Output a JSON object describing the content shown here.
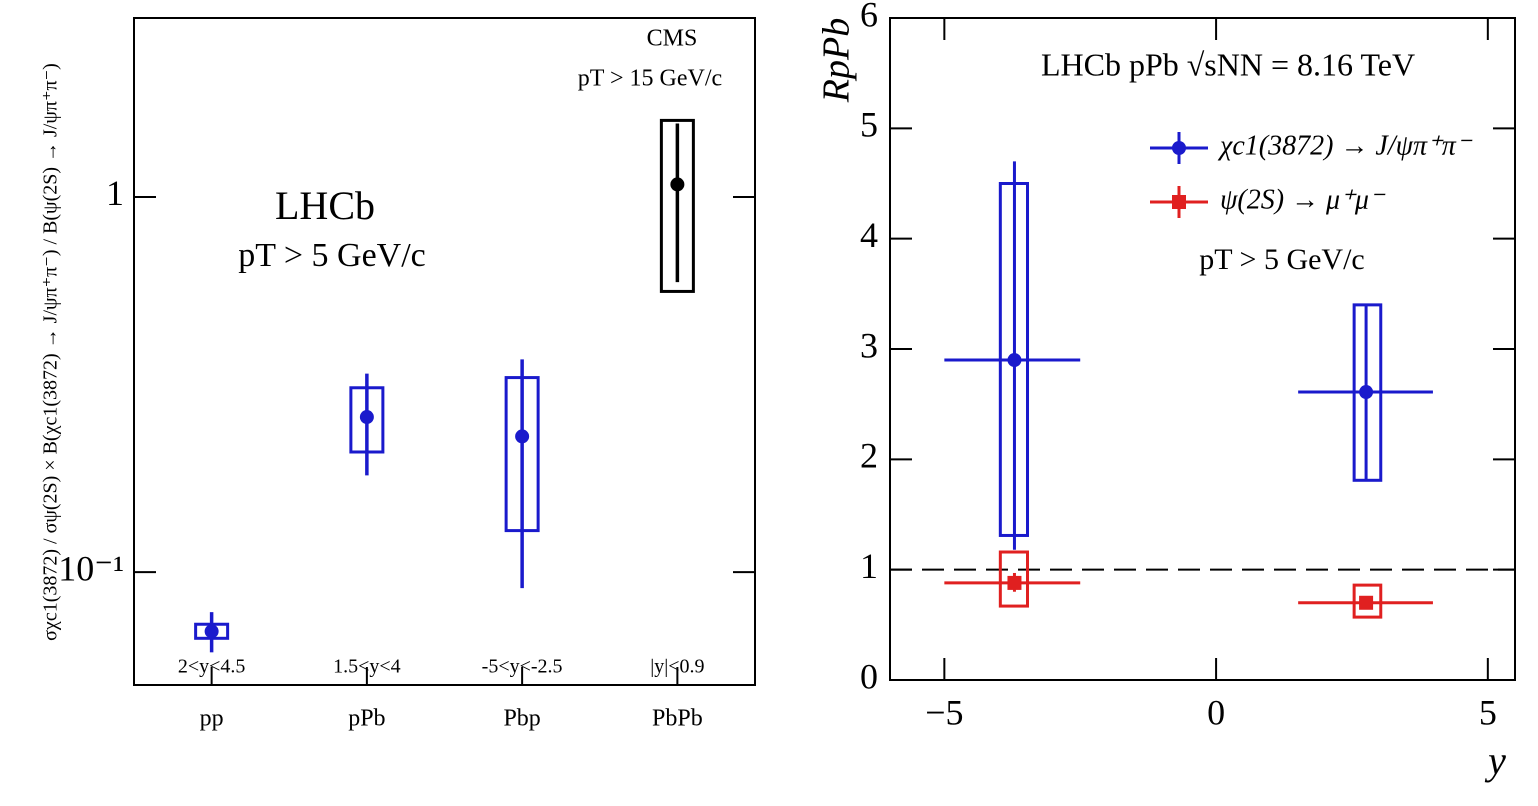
{
  "chart_data": [
    {
      "type": "errorbar",
      "y_label": "σχc1(3872) / σψ(2S) × B(χc1(3872) → J/ψπ⁺π⁻) / B(ψ(2S) → J/ψπ⁺π⁻)",
      "categories": [
        "pp",
        "pPb",
        "Pbp",
        "PbPb"
      ],
      "range_labels": [
        "2<y<4.5",
        "1.5<y<4",
        "-5<y<-2.5",
        "|y|<0.9"
      ],
      "values": [
        0.0695,
        0.259,
        0.23,
        1.08
      ],
      "stat_low": [
        0.0611,
        0.181,
        0.0906,
        0.593
      ],
      "stat_high": [
        0.0782,
        0.338,
        0.369,
        1.57
      ],
      "syst_low": [
        0.0666,
        0.209,
        0.129,
        0.56
      ],
      "syst_high": [
        0.0726,
        0.31,
        0.33,
        1.6
      ],
      "colors": [
        "#1a1acc",
        "#1a1acc",
        "#1a1acc",
        "#000000"
      ],
      "annotations": [
        "CMS",
        "pT > 15 GeV/c",
        "LHCb",
        "pT > 5 GeV/c"
      ],
      "annotation_colors": [
        "#000000",
        "#000000",
        "#1a1acc",
        "#1a1acc"
      ],
      "log_y": true,
      "ylim": [
        0.05,
        3
      ],
      "yticks": [
        {
          "value": 0.1,
          "label": "10⁻¹"
        },
        1
      ]
    },
    {
      "type": "scatter",
      "x_label": "y",
      "y_label": "RpPb",
      "annotations": [
        "LHCb pPb √sNN = 8.16 TeV",
        "pT > 5 GeV/c"
      ],
      "xlim": [
        -6,
        5.5
      ],
      "ylim": [
        0,
        6
      ],
      "xticks": [
        {
          "value": -5,
          "label": "−5"
        },
        0,
        5
      ],
      "yticks": [
        0,
        1,
        2,
        3,
        4,
        5,
        6
      ],
      "reference_line": 1,
      "series": [
        {
          "name": "χc1(3872) → J/ψπ⁺π⁻",
          "color": "#1a1acc",
          "marker": "circle",
          "x": [
            -3.71,
            2.76
          ],
          "values": [
            2.9,
            2.61
          ],
          "x_low": [
            -5,
            1.51
          ],
          "x_high": [
            -2.5,
            3.99
          ],
          "stat_low": [
            1.18,
            1.81
          ],
          "stat_high": [
            4.7,
            3.4
          ],
          "syst_low": [
            1.31,
            1.81
          ],
          "syst_high": [
            4.5,
            3.4
          ],
          "syst_x_low": [
            -3.97,
            2.54
          ],
          "syst_x_high": [
            -3.47,
            3.03
          ]
        },
        {
          "name": "ψ(2S) → μ⁺μ⁻",
          "color": "#e02020",
          "marker": "square",
          "x": [
            -3.71,
            2.76
          ],
          "values": [
            0.88,
            0.7
          ],
          "x_low": [
            -5,
            1.51
          ],
          "x_high": [
            -2.5,
            3.99
          ],
          "stat_low": [
            0.8,
            0.65
          ],
          "stat_high": [
            0.97,
            0.75
          ],
          "syst_low": [
            0.67,
            0.57
          ],
          "syst_high": [
            1.16,
            0.86
          ],
          "syst_x_low": [
            -3.97,
            2.54
          ],
          "syst_x_high": [
            -3.47,
            3.03
          ]
        }
      ]
    }
  ]
}
